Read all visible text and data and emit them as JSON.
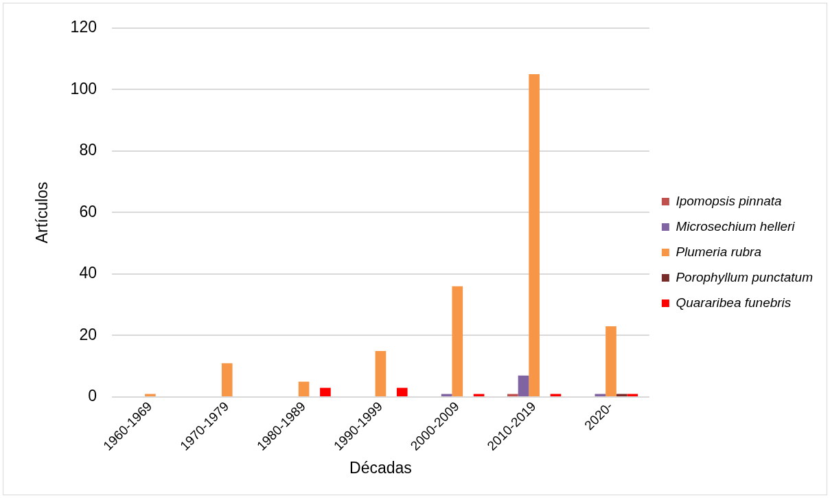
{
  "chart_data": {
    "type": "bar",
    "xlabel": "Décadas",
    "ylabel": "Artículos",
    "categories": [
      "1960-1969",
      "1970-1979",
      "1980-1989",
      "1990-1999",
      "2000-2009",
      "2010-2019",
      "2020-"
    ],
    "series": [
      {
        "name": "Ipomopsis pinnata",
        "color": "#c0504d",
        "values": [
          0,
          0,
          0,
          0,
          0,
          1,
          0
        ]
      },
      {
        "name": "Microsechium helleri",
        "color": "#8064a2",
        "values": [
          0,
          0,
          0,
          0,
          1,
          7,
          1
        ]
      },
      {
        "name": "Plumeria rubra",
        "color": "#f79646",
        "values": [
          1,
          11,
          5,
          15,
          36,
          105,
          23
        ]
      },
      {
        "name": "Porophyllum punctatum",
        "color": "#772c2a",
        "values": [
          0,
          0,
          0,
          0,
          0,
          0,
          1
        ]
      },
      {
        "name": "Quararibea funebris",
        "color": "#ff0000",
        "values": [
          0,
          0,
          3,
          3,
          1,
          1,
          1
        ]
      }
    ],
    "ylim": [
      0,
      120
    ],
    "yticks": [
      0,
      20,
      40,
      60,
      80,
      100,
      120
    ],
    "grid": "y",
    "legend": "right"
  }
}
